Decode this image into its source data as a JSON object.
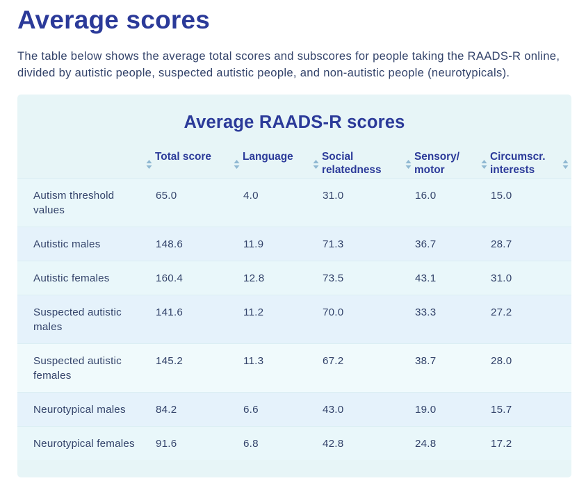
{
  "page": {
    "title": "Average scores",
    "intro": "The table below shows the average total scores and subscores for people taking the RAADS-R online, divided by autistic people, suspected autistic people, and non-autistic people (neurotypicals)."
  },
  "table": {
    "title": "Average RAADS-R scores",
    "headers": [
      "",
      "Total score",
      "Language",
      "Social relatedness",
      "Sensory/ motor",
      "Circumscr. interests"
    ],
    "rows": [
      {
        "label": "Autism threshold values",
        "values": [
          "65.0",
          "4.0",
          "31.0",
          "16.0",
          "15.0"
        ]
      },
      {
        "label": "Autistic males",
        "values": [
          "148.6",
          "11.9",
          "71.3",
          "36.7",
          "28.7"
        ]
      },
      {
        "label": "Autistic females",
        "values": [
          "160.4",
          "12.8",
          "73.5",
          "43.1",
          "31.0"
        ]
      },
      {
        "label": "Suspected autistic males",
        "values": [
          "141.6",
          "11.2",
          "70.0",
          "33.3",
          "27.2"
        ]
      },
      {
        "label": "Suspected autistic females",
        "values": [
          "145.2",
          "11.3",
          "67.2",
          "38.7",
          "28.0"
        ]
      },
      {
        "label": "Neurotypical males",
        "values": [
          "84.2",
          "6.6",
          "43.0",
          "19.0",
          "15.7"
        ]
      },
      {
        "label": "Neurotypical females",
        "values": [
          "91.6",
          "6.8",
          "42.8",
          "24.8",
          "17.2"
        ]
      }
    ]
  },
  "colors": {
    "heading": "#2b3a99",
    "text": "#33436a",
    "card_background": "#e7f5f7",
    "sort_icon": "#8fb8d2"
  },
  "icons": {
    "sort": "sort-arrows-icon"
  }
}
